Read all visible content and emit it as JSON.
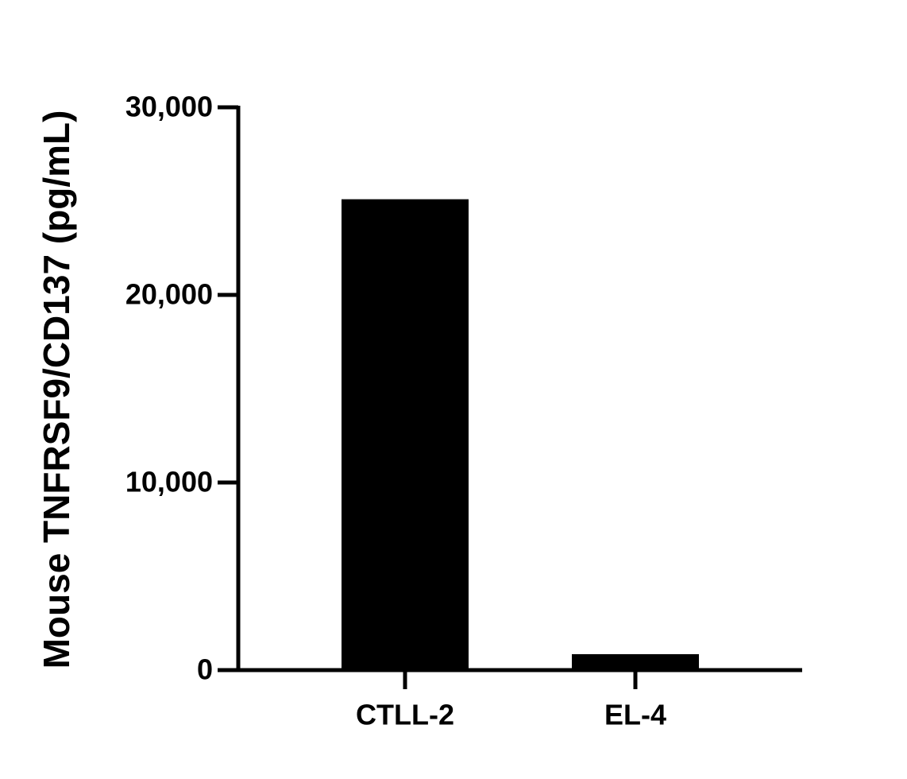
{
  "chart_data": {
    "type": "bar",
    "ylabel": "Mouse TNFRSF9/CD137 (pg/mL)",
    "categories": [
      "CTLL-2",
      "EL-4"
    ],
    "values": [
      25100,
      850
    ],
    "color": "#000000",
    "ylim": [
      0,
      30000
    ],
    "yticks": [
      0,
      {
        "value": 10000,
        "label": "10,000"
      },
      {
        "value": 20000,
        "label": "20,000"
      },
      {
        "value": 30000,
        "label": "30,000"
      }
    ],
    "grid": false
  }
}
